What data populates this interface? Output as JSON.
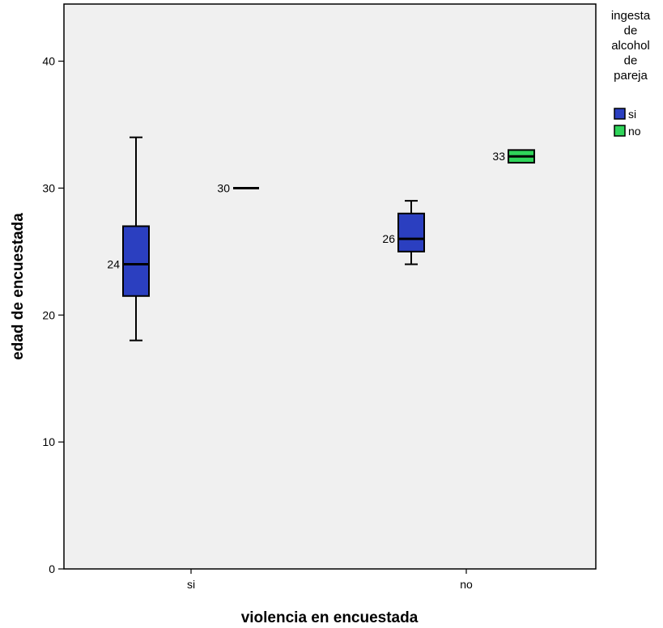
{
  "chart_data": {
    "type": "boxplot",
    "xlabel": "violencia en encuestada",
    "ylabel": "edad de encuestada",
    "ylim": [
      0,
      44.5
    ],
    "yticks": [
      0,
      10,
      20,
      30,
      40
    ],
    "categories": [
      "si",
      "no"
    ],
    "grid": false,
    "legend": {
      "title_lines": [
        "ingesta",
        "de",
        "alcohol",
        "de",
        "pareja"
      ],
      "position": "right"
    },
    "series": [
      {
        "name": "si",
        "color": "#2b3fc0",
        "boxes": [
          {
            "category": "si",
            "min": 18,
            "q1": 21.5,
            "median": 24,
            "q3": 27,
            "max": 34,
            "median_label": "24"
          },
          {
            "category": "no",
            "min": 24,
            "q1": 25,
            "median": 26,
            "q3": 28,
            "max": 29,
            "median_label": "26"
          }
        ]
      },
      {
        "name": "no",
        "color": "#2fd45a",
        "boxes": [
          {
            "category": "si",
            "min": 30,
            "q1": 30,
            "median": 30,
            "q3": 30,
            "max": 30,
            "median_label": "30"
          },
          {
            "category": "no",
            "min": 32,
            "q1": 32,
            "median": 32.5,
            "q3": 33,
            "max": 33,
            "median_label": "33"
          }
        ]
      }
    ]
  }
}
